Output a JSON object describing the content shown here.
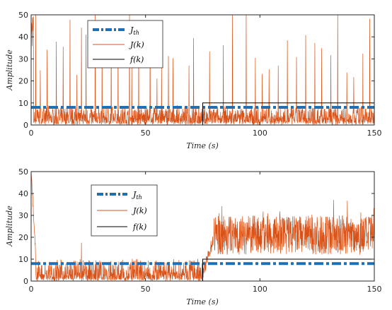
{
  "chart_data": [
    {
      "type": "line",
      "xlabel": "Time (s)",
      "ylabel": "Amplitude",
      "xlim": [
        0,
        150
      ],
      "ylim": [
        0,
        50
      ],
      "xticks": [
        "0",
        "50",
        "100",
        "150"
      ],
      "yticks": [
        "0",
        "10",
        "20",
        "30",
        "40",
        "50"
      ],
      "grid": false,
      "legend_position": "upper-left-center",
      "series": [
        {
          "name": "J_th",
          "color": "#1f6fb5",
          "style": "dash-dot thick",
          "x": [
            0,
            150
          ],
          "y": [
            8,
            8
          ]
        },
        {
          "name": "J(k)",
          "color": "#d95319",
          "style": "noisy line",
          "description_values": {
            "baseline_mean": 2.5,
            "baseline_max": 8,
            "spikes_to": 50
          }
        },
        {
          "name": "f(k)",
          "color": "#000000",
          "style": "step",
          "x": [
            0,
            75,
            75,
            150
          ],
          "y": [
            0,
            0,
            10,
            10
          ]
        }
      ],
      "spikes_x": [
        1,
        2,
        4,
        7,
        11,
        14,
        17,
        20,
        22,
        24,
        28,
        31,
        35,
        38,
        43,
        44,
        47,
        52,
        55,
        57,
        60,
        62,
        69,
        71,
        78,
        84,
        88,
        94,
        98,
        101,
        104,
        108,
        112,
        116,
        120,
        124,
        127,
        131,
        134,
        138,
        141,
        145,
        148
      ]
    },
    {
      "type": "line",
      "xlabel": "Time (s)",
      "ylabel": "Amplitude",
      "xlim": [
        0,
        150
      ],
      "ylim": [
        0,
        50
      ],
      "xticks": [
        "0",
        "50",
        "100",
        "150"
      ],
      "yticks": [
        "0",
        "10",
        "20",
        "30",
        "40",
        "50"
      ],
      "grid": false,
      "legend_position": "upper-left-center",
      "series": [
        {
          "name": "J_th",
          "color": "#1f6fb5",
          "style": "dash-dot thick",
          "x": [
            0,
            150
          ],
          "y": [
            8,
            8
          ]
        },
        {
          "name": "J(k)",
          "color": "#d95319",
          "style": "noisy line",
          "description_values": {
            "before_75_mean": 3,
            "after_75_mean": 22,
            "peak": 43
          }
        },
        {
          "name": "f(k)",
          "color": "#000000",
          "style": "step",
          "x": [
            0,
            75,
            75,
            150
          ],
          "y": [
            0,
            0,
            10,
            10
          ]
        }
      ]
    }
  ],
  "legend": {
    "jth": {
      "base": "J",
      "sub": "th"
    },
    "jk": "J(k)",
    "fk": "f(k)"
  }
}
